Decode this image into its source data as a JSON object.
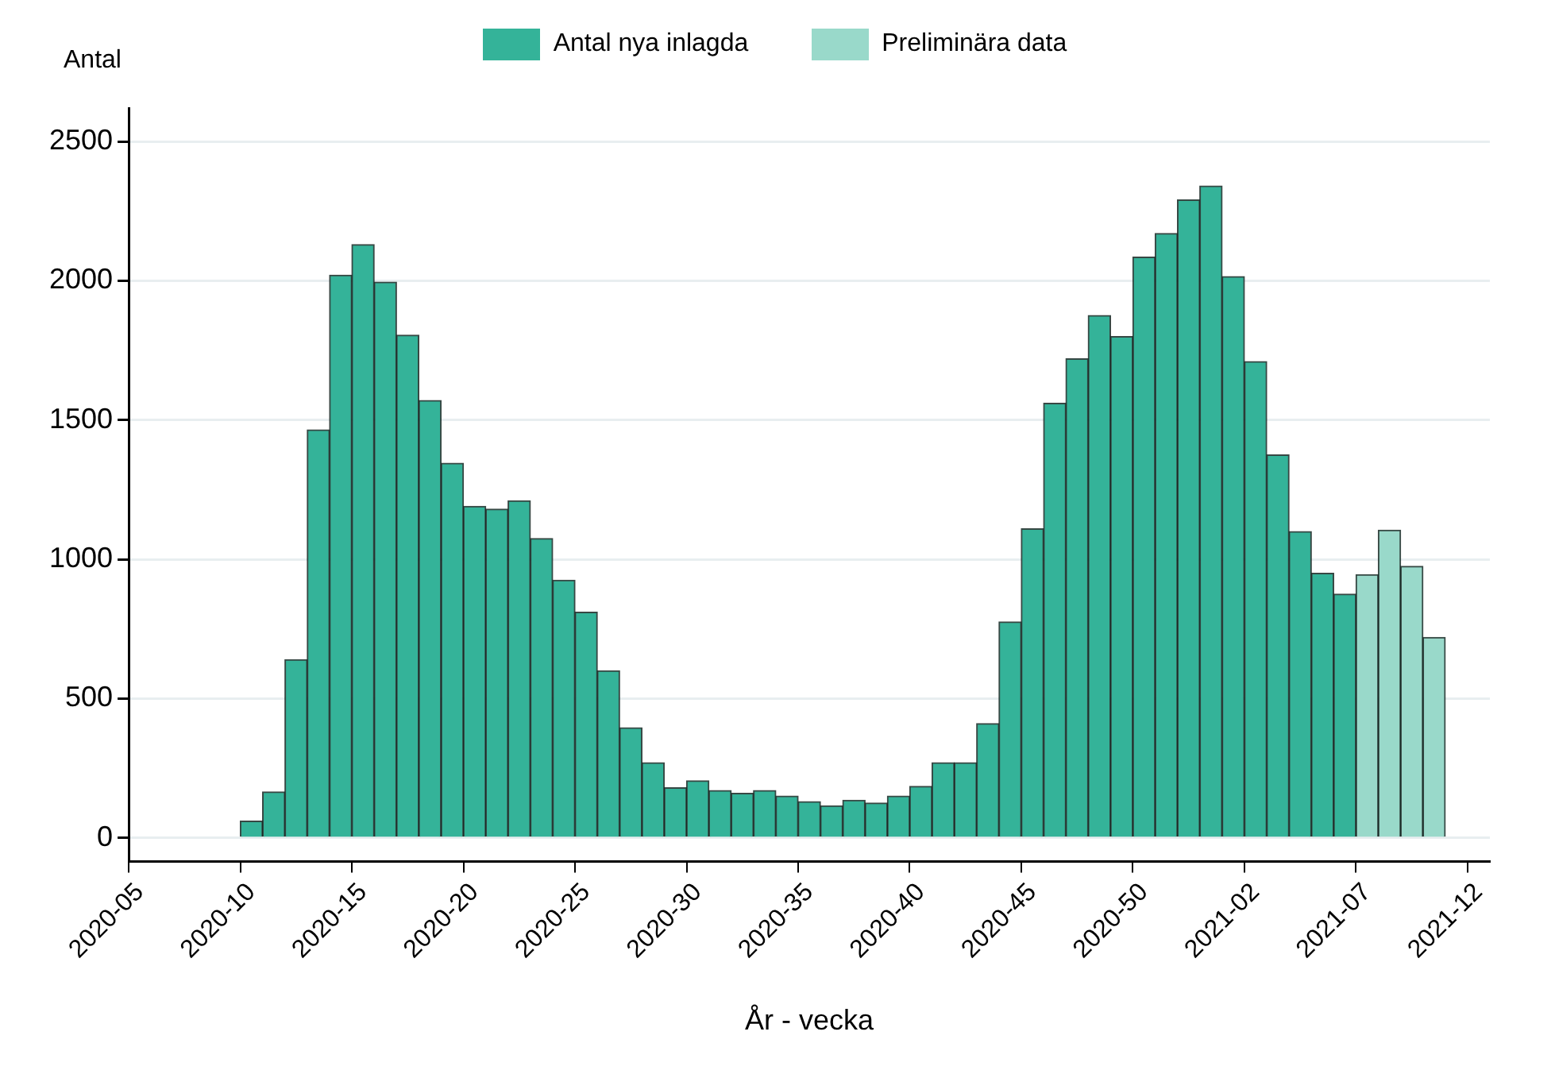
{
  "chart_data": {
    "type": "bar",
    "ylabel": "Antal",
    "xlabel": "År - vecka",
    "categories": [
      "2020-05",
      null,
      null,
      null,
      null,
      "2020-10",
      null,
      null,
      null,
      null,
      "2020-15",
      null,
      null,
      null,
      null,
      "2020-20",
      null,
      null,
      null,
      null,
      "2020-25",
      null,
      null,
      null,
      null,
      "2020-30",
      null,
      null,
      null,
      null,
      "2020-35",
      null,
      null,
      null,
      null,
      "2020-40",
      null,
      null,
      null,
      null,
      "2020-45",
      null,
      null,
      null,
      null,
      "2020-50",
      null,
      null,
      null,
      null,
      "2021-02",
      null,
      null,
      null,
      null,
      "2021-07",
      null,
      null,
      null,
      null,
      "2021-12"
    ],
    "series": [
      {
        "name": "Antal nya inlagda",
        "color": "#34b399",
        "values": [
          null,
          null,
          null,
          null,
          null,
          60,
          165,
          640,
          1465,
          2020,
          2130,
          1995,
          1805,
          1570,
          1345,
          1190,
          1180,
          1210,
          1075,
          925,
          810,
          600,
          395,
          270,
          180,
          205,
          170,
          160,
          170,
          150,
          130,
          115,
          135,
          125,
          150,
          185,
          270,
          270,
          410,
          775,
          1110,
          1560,
          1720,
          1875,
          1800,
          2085,
          2170,
          2290,
          2340,
          2015,
          1710,
          1375,
          1100,
          950,
          875,
          null,
          null,
          null,
          null,
          null,
          null
        ]
      },
      {
        "name": "Preliminära data",
        "color": "#99d9ca",
        "values": [
          null,
          null,
          null,
          null,
          null,
          null,
          null,
          null,
          null,
          null,
          null,
          null,
          null,
          null,
          null,
          null,
          null,
          null,
          null,
          null,
          null,
          null,
          null,
          null,
          null,
          null,
          null,
          null,
          null,
          null,
          null,
          null,
          null,
          null,
          null,
          null,
          null,
          null,
          null,
          null,
          null,
          null,
          null,
          null,
          null,
          null,
          null,
          null,
          null,
          null,
          null,
          null,
          null,
          null,
          null,
          945,
          1105,
          975,
          720,
          null,
          null
        ]
      }
    ],
    "ylim": [
      -85,
      2620
    ],
    "yticks": [
      0,
      500,
      1000,
      1500,
      2000,
      2500
    ],
    "grid": "y",
    "legend": "top"
  }
}
